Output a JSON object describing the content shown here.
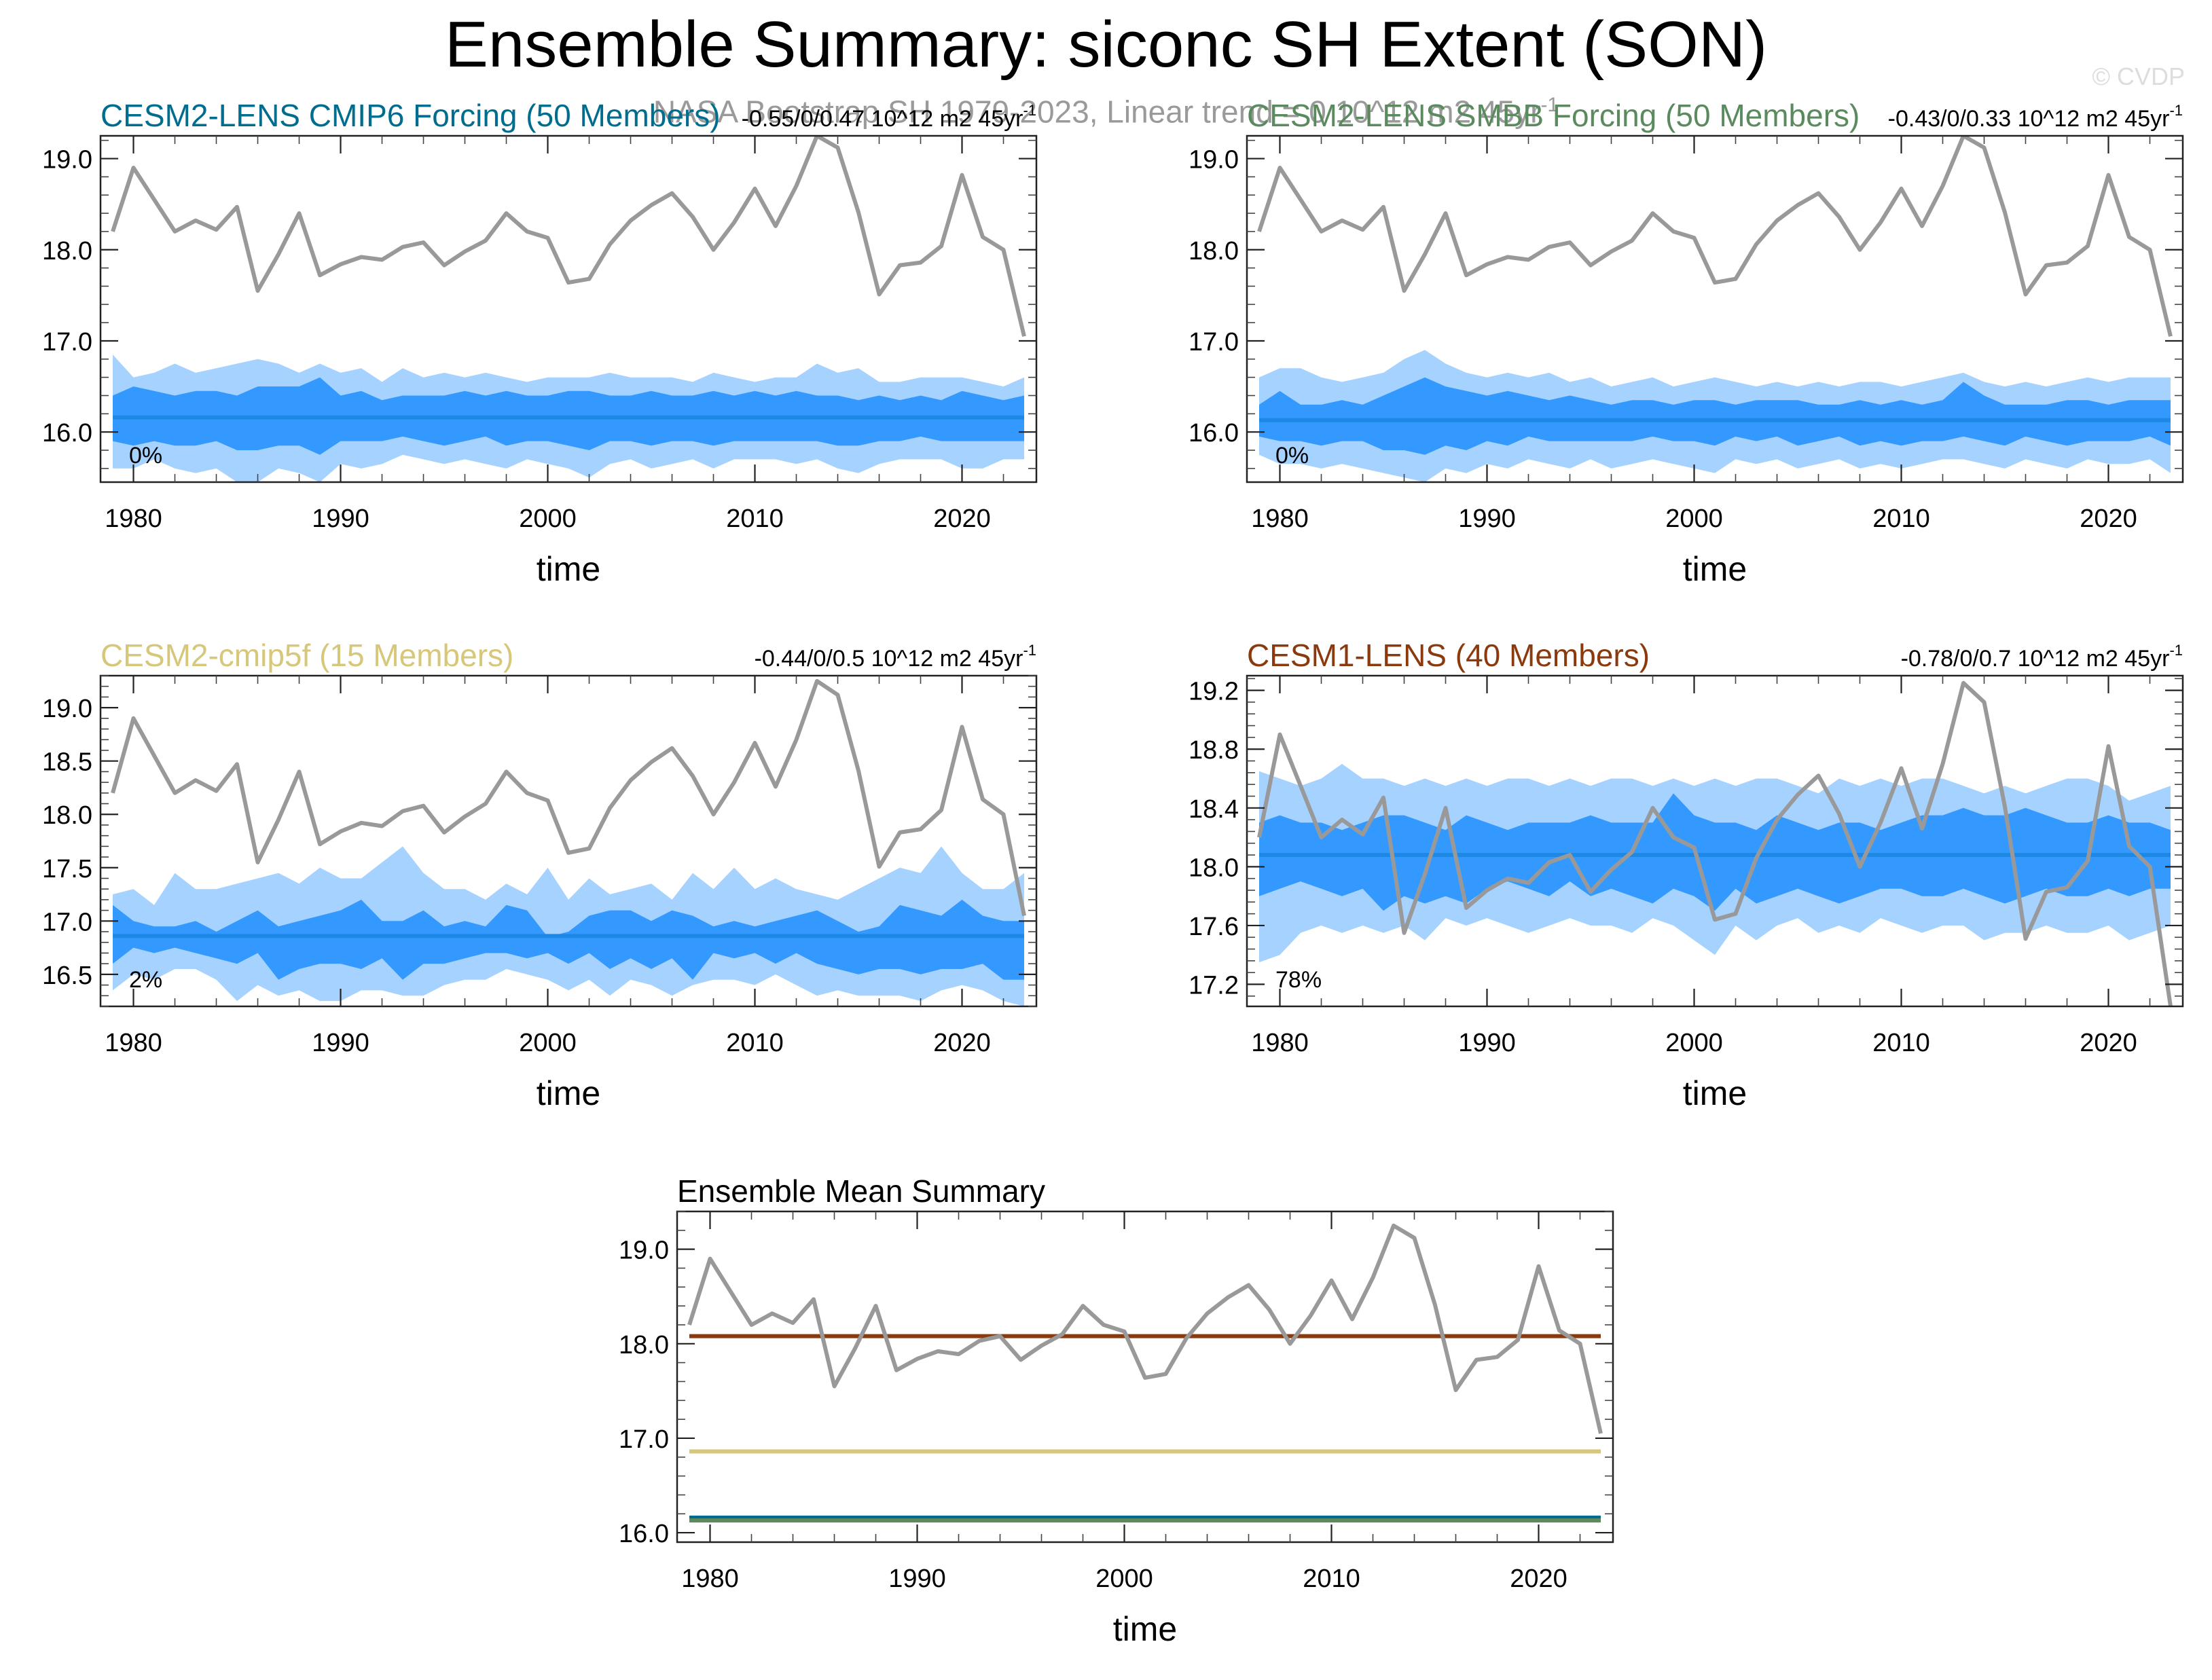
{
  "title": "Ensemble Summary: siconc SH Extent (SON)",
  "subtitle": "NASA Bootstrap SH 1979-2023, Linear trend = 0 10^12 m2 45yr",
  "subtitle_sup": "-1",
  "watermark": "© CVDP",
  "colors": {
    "obs": "#999999",
    "mean_line": "#1e88e5",
    "band_inner": "#3399ff",
    "band_outer": "#a6d2ff",
    "cmip6": "#006d8f",
    "smbb": "#5a8a5e",
    "cmip5f": "#d6c77a",
    "lens1": "#8b3a0e"
  },
  "chart_data": [
    {
      "type": "area",
      "id": "cmip6",
      "title": "CESM2-LENS CMIP6 Forcing (50 Members)",
      "title_color": "#006d8f",
      "trend_label": "-0.55/0/0.47 10^12 m2 45yr",
      "trend_sup": "-1",
      "percent_label": "0%",
      "xlabel": "time",
      "xlim": [
        1979,
        2023
      ],
      "ylim": [
        15.45,
        19.25
      ],
      "yticks": [
        16.0,
        17.0,
        18.0,
        19.0
      ],
      "ytick_labels": [
        "16.0",
        "17.0",
        "18.0",
        "19.0"
      ],
      "xticks": [
        1980,
        1990,
        2000,
        2010,
        2020
      ],
      "xtick_labels": [
        "1980",
        "1990",
        "2000",
        "2010",
        "2020"
      ],
      "ensemble_mean": 16.16,
      "outer_low": [
        15.6,
        15.6,
        15.7,
        15.6,
        15.55,
        15.6,
        15.45,
        15.45,
        15.6,
        15.55,
        15.45,
        15.65,
        15.6,
        15.65,
        15.75,
        15.7,
        15.65,
        15.7,
        15.65,
        15.6,
        15.7,
        15.65,
        15.6,
        15.5,
        15.65,
        15.7,
        15.6,
        15.65,
        15.7,
        15.6,
        15.7,
        15.7,
        15.7,
        15.65,
        15.7,
        15.6,
        15.55,
        15.65,
        15.7,
        15.7,
        15.7,
        15.6,
        15.6,
        15.7,
        15.7
      ],
      "inner_low": [
        15.9,
        15.85,
        15.9,
        15.85,
        15.85,
        15.9,
        15.8,
        15.8,
        15.85,
        15.85,
        15.75,
        15.9,
        15.9,
        15.9,
        15.95,
        15.9,
        15.85,
        15.9,
        15.95,
        15.85,
        15.9,
        15.9,
        15.85,
        15.8,
        15.9,
        15.9,
        15.85,
        15.9,
        15.9,
        15.85,
        15.9,
        15.9,
        15.9,
        15.9,
        15.9,
        15.85,
        15.85,
        15.9,
        15.9,
        15.95,
        15.9,
        15.9,
        15.9,
        15.9,
        15.9
      ],
      "inner_high": [
        16.4,
        16.5,
        16.45,
        16.4,
        16.45,
        16.45,
        16.4,
        16.5,
        16.5,
        16.5,
        16.6,
        16.4,
        16.45,
        16.35,
        16.4,
        16.4,
        16.4,
        16.45,
        16.4,
        16.45,
        16.4,
        16.4,
        16.45,
        16.45,
        16.4,
        16.4,
        16.45,
        16.4,
        16.4,
        16.45,
        16.4,
        16.45,
        16.4,
        16.45,
        16.4,
        16.4,
        16.35,
        16.4,
        16.35,
        16.4,
        16.35,
        16.45,
        16.4,
        16.35,
        16.4
      ],
      "outer_high": [
        16.85,
        16.6,
        16.65,
        16.75,
        16.65,
        16.7,
        16.75,
        16.8,
        16.75,
        16.65,
        16.75,
        16.65,
        16.7,
        16.55,
        16.7,
        16.6,
        16.65,
        16.6,
        16.65,
        16.6,
        16.55,
        16.6,
        16.6,
        16.6,
        16.65,
        16.6,
        16.6,
        16.6,
        16.55,
        16.65,
        16.6,
        16.55,
        16.6,
        16.6,
        16.75,
        16.65,
        16.7,
        16.55,
        16.55,
        16.6,
        16.6,
        16.6,
        16.55,
        16.5,
        16.6
      ]
    },
    {
      "type": "area",
      "id": "smbb",
      "title": "CESM2-LENS SMBB Forcing (50 Members)",
      "title_color": "#5a8a5e",
      "trend_label": "-0.43/0/0.33 10^12 m2 45yr",
      "trend_sup": "-1",
      "percent_label": "0%",
      "xlabel": "time",
      "xlim": [
        1979,
        2023
      ],
      "ylim": [
        15.45,
        19.25
      ],
      "yticks": [
        16.0,
        17.0,
        18.0,
        19.0
      ],
      "ytick_labels": [
        "16.0",
        "17.0",
        "18.0",
        "19.0"
      ],
      "xticks": [
        1980,
        1990,
        2000,
        2010,
        2020
      ],
      "xtick_labels": [
        "1980",
        "1990",
        "2000",
        "2010",
        "2020"
      ],
      "ensemble_mean": 16.13,
      "outer_low": [
        15.75,
        15.65,
        15.65,
        15.6,
        15.65,
        15.6,
        15.55,
        15.5,
        15.45,
        15.6,
        15.55,
        15.65,
        15.6,
        15.7,
        15.65,
        15.6,
        15.7,
        15.6,
        15.65,
        15.7,
        15.65,
        15.6,
        15.55,
        15.7,
        15.65,
        15.7,
        15.6,
        15.65,
        15.7,
        15.6,
        15.65,
        15.6,
        15.65,
        15.7,
        15.7,
        15.65,
        15.6,
        15.7,
        15.65,
        15.6,
        15.7,
        15.65,
        15.65,
        15.7,
        15.55
      ],
      "inner_low": [
        15.95,
        15.9,
        15.9,
        15.85,
        15.9,
        15.9,
        15.8,
        15.8,
        15.75,
        15.85,
        15.8,
        15.9,
        15.85,
        15.95,
        15.9,
        15.9,
        15.9,
        15.9,
        15.9,
        15.95,
        15.9,
        15.9,
        15.85,
        15.95,
        15.9,
        15.95,
        15.85,
        15.9,
        15.95,
        15.85,
        15.9,
        15.85,
        15.9,
        15.9,
        15.95,
        15.9,
        15.85,
        15.95,
        15.9,
        15.85,
        15.9,
        15.9,
        15.9,
        15.95,
        15.85
      ],
      "inner_high": [
        16.3,
        16.45,
        16.3,
        16.3,
        16.35,
        16.3,
        16.4,
        16.5,
        16.6,
        16.5,
        16.45,
        16.4,
        16.45,
        16.4,
        16.35,
        16.4,
        16.35,
        16.3,
        16.35,
        16.35,
        16.3,
        16.35,
        16.35,
        16.3,
        16.35,
        16.35,
        16.35,
        16.3,
        16.3,
        16.35,
        16.3,
        16.35,
        16.3,
        16.35,
        16.55,
        16.4,
        16.3,
        16.3,
        16.3,
        16.35,
        16.35,
        16.3,
        16.35,
        16.35,
        16.35
      ],
      "outer_high": [
        16.6,
        16.7,
        16.7,
        16.6,
        16.55,
        16.6,
        16.65,
        16.8,
        16.9,
        16.75,
        16.65,
        16.6,
        16.65,
        16.6,
        16.65,
        16.55,
        16.6,
        16.5,
        16.55,
        16.6,
        16.5,
        16.55,
        16.6,
        16.55,
        16.5,
        16.55,
        16.5,
        16.55,
        16.5,
        16.55,
        16.55,
        16.5,
        16.55,
        16.6,
        16.65,
        16.55,
        16.5,
        16.55,
        16.5,
        16.55,
        16.6,
        16.55,
        16.6,
        16.6,
        16.6
      ]
    },
    {
      "type": "area",
      "id": "cmip5f",
      "title": "CESM2-cmip5f (15 Members)",
      "title_color": "#d6c77a",
      "trend_label": "-0.44/0/0.5 10^12 m2 45yr",
      "trend_sup": "-1",
      "percent_label": "2%",
      "xlabel": "time",
      "xlim": [
        1979,
        2023
      ],
      "ylim": [
        16.2,
        19.3
      ],
      "yticks": [
        16.5,
        17.0,
        17.5,
        18.0,
        18.5,
        19.0
      ],
      "ytick_labels": [
        "16.5",
        "17.0",
        "17.5",
        "18.0",
        "18.5",
        "19.0"
      ],
      "xticks": [
        1980,
        1990,
        2000,
        2010,
        2020
      ],
      "xtick_labels": [
        "1980",
        "1990",
        "2000",
        "2010",
        "2020"
      ],
      "ensemble_mean": 16.86,
      "outer_low": [
        16.35,
        16.5,
        16.45,
        16.55,
        16.55,
        16.45,
        16.25,
        16.4,
        16.3,
        16.35,
        16.25,
        16.25,
        16.35,
        16.35,
        16.3,
        16.3,
        16.4,
        16.45,
        16.45,
        16.55,
        16.5,
        16.45,
        16.35,
        16.45,
        16.3,
        16.45,
        16.4,
        16.3,
        16.4,
        16.45,
        16.45,
        16.4,
        16.5,
        16.4,
        16.3,
        16.35,
        16.3,
        16.3,
        16.3,
        16.25,
        16.35,
        16.4,
        16.35,
        16.25,
        16.2
      ],
      "inner_low": [
        16.6,
        16.75,
        16.7,
        16.75,
        16.7,
        16.65,
        16.6,
        16.7,
        16.45,
        16.55,
        16.6,
        16.6,
        16.55,
        16.65,
        16.45,
        16.6,
        16.6,
        16.65,
        16.7,
        16.7,
        16.65,
        16.7,
        16.6,
        16.7,
        16.55,
        16.65,
        16.55,
        16.65,
        16.45,
        16.7,
        16.65,
        16.7,
        16.6,
        16.7,
        16.6,
        16.55,
        16.5,
        16.55,
        16.55,
        16.5,
        16.55,
        16.55,
        16.6,
        16.45,
        16.45
      ],
      "inner_high": [
        17.15,
        17.0,
        16.95,
        16.95,
        17.0,
        16.9,
        17.0,
        17.1,
        16.95,
        17.0,
        17.05,
        17.1,
        17.2,
        17.0,
        17.0,
        17.1,
        16.95,
        17.0,
        16.95,
        17.15,
        17.1,
        16.85,
        16.9,
        17.05,
        17.1,
        17.1,
        17.0,
        17.1,
        17.05,
        16.95,
        17.0,
        16.95,
        17.0,
        17.05,
        17.1,
        17.0,
        16.9,
        16.95,
        17.15,
        17.1,
        17.05,
        17.2,
        17.05,
        17.0,
        17.0
      ],
      "outer_high": [
        17.25,
        17.3,
        17.15,
        17.45,
        17.3,
        17.3,
        17.35,
        17.4,
        17.45,
        17.35,
        17.5,
        17.4,
        17.4,
        17.55,
        17.7,
        17.45,
        17.3,
        17.3,
        17.2,
        17.35,
        17.25,
        17.5,
        17.2,
        17.4,
        17.25,
        17.3,
        17.35,
        17.2,
        17.45,
        17.3,
        17.5,
        17.3,
        17.4,
        17.3,
        17.25,
        17.2,
        17.3,
        17.4,
        17.5,
        17.45,
        17.7,
        17.45,
        17.3,
        17.3,
        17.45
      ]
    },
    {
      "type": "area",
      "id": "lens1",
      "title": "CESM1-LENS (40 Members)",
      "title_color": "#8b3a0e",
      "trend_label": "-0.78/0/0.7 10^12 m2 45yr",
      "trend_sup": "-1",
      "percent_label": "78%",
      "xlabel": "time",
      "xlim": [
        1979,
        2023
      ],
      "ylim": [
        17.05,
        19.3
      ],
      "yticks": [
        17.2,
        17.6,
        18.0,
        18.4,
        18.8,
        19.2
      ],
      "ytick_labels": [
        "17.2",
        "17.6",
        "18.0",
        "18.4",
        "18.8",
        "19.2"
      ],
      "xticks": [
        1980,
        1990,
        2000,
        2010,
        2020
      ],
      "xtick_labels": [
        "1980",
        "1990",
        "2000",
        "2010",
        "2020"
      ],
      "ensemble_mean": 18.08,
      "outer_low": [
        17.35,
        17.4,
        17.55,
        17.6,
        17.55,
        17.6,
        17.55,
        17.6,
        17.5,
        17.65,
        17.6,
        17.65,
        17.6,
        17.55,
        17.6,
        17.65,
        17.6,
        17.6,
        17.55,
        17.65,
        17.6,
        17.5,
        17.4,
        17.6,
        17.5,
        17.6,
        17.65,
        17.55,
        17.6,
        17.55,
        17.65,
        17.6,
        17.55,
        17.6,
        17.6,
        17.5,
        17.55,
        17.55,
        17.6,
        17.55,
        17.55,
        17.6,
        17.5,
        17.55,
        17.6
      ],
      "inner_low": [
        17.8,
        17.85,
        17.9,
        17.85,
        17.8,
        17.85,
        17.7,
        17.8,
        17.75,
        17.8,
        17.75,
        17.85,
        17.9,
        17.85,
        17.8,
        17.9,
        17.8,
        17.85,
        17.8,
        17.75,
        17.85,
        17.8,
        17.7,
        17.85,
        17.75,
        17.8,
        17.85,
        17.8,
        17.75,
        17.8,
        17.85,
        17.85,
        17.8,
        17.8,
        17.85,
        17.8,
        17.75,
        17.8,
        17.85,
        17.8,
        17.8,
        17.85,
        17.8,
        17.85,
        17.85
      ],
      "inner_high": [
        18.3,
        18.35,
        18.3,
        18.3,
        18.25,
        18.3,
        18.35,
        18.35,
        18.3,
        18.25,
        18.35,
        18.3,
        18.25,
        18.3,
        18.3,
        18.3,
        18.35,
        18.3,
        18.3,
        18.3,
        18.5,
        18.35,
        18.3,
        18.3,
        18.25,
        18.35,
        18.3,
        18.25,
        18.3,
        18.3,
        18.25,
        18.3,
        18.35,
        18.35,
        18.4,
        18.35,
        18.35,
        18.4,
        18.35,
        18.3,
        18.3,
        18.35,
        18.3,
        18.3,
        18.25
      ],
      "outer_high": [
        18.65,
        18.6,
        18.55,
        18.6,
        18.7,
        18.6,
        18.6,
        18.55,
        18.6,
        18.55,
        18.6,
        18.55,
        18.6,
        18.6,
        18.55,
        18.6,
        18.55,
        18.6,
        18.6,
        18.55,
        18.6,
        18.55,
        18.6,
        18.55,
        18.6,
        18.6,
        18.55,
        18.5,
        18.6,
        18.55,
        18.6,
        18.55,
        18.6,
        18.6,
        18.55,
        18.5,
        18.55,
        18.5,
        18.55,
        18.6,
        18.6,
        18.55,
        18.45,
        18.5,
        18.55
      ]
    },
    {
      "type": "line",
      "id": "mean-summary",
      "title": "Ensemble Mean Summary",
      "title_color": "#000000",
      "xlabel": "time",
      "xlim": [
        1979,
        2023
      ],
      "ylim": [
        15.9,
        19.4
      ],
      "yticks": [
        16.0,
        17.0,
        18.0,
        19.0
      ],
      "ytick_labels": [
        "16.0",
        "17.0",
        "18.0",
        "19.0"
      ],
      "xticks": [
        1980,
        1990,
        2000,
        2010,
        2020
      ],
      "xtick_labels": [
        "1980",
        "1990",
        "2000",
        "2010",
        "2020"
      ],
      "series": [
        {
          "id": "lens1",
          "value": 18.08,
          "color": "#8b3a0e"
        },
        {
          "id": "cmip5f",
          "value": 16.86,
          "color": "#d6c77a"
        },
        {
          "id": "cmip6",
          "value": 16.16,
          "color": "#006d8f"
        },
        {
          "id": "smbb",
          "value": 16.13,
          "color": "#5a8a5e"
        }
      ]
    }
  ],
  "observations": {
    "x_start": 1979,
    "x_end": 2023,
    "values": [
      18.2,
      18.9,
      18.55,
      18.2,
      18.32,
      18.22,
      18.47,
      17.55,
      17.95,
      18.4,
      17.72,
      17.84,
      17.92,
      17.89,
      18.03,
      18.08,
      17.83,
      17.98,
      18.1,
      18.4,
      18.2,
      18.13,
      17.64,
      17.68,
      18.06,
      18.32,
      18.49,
      18.62,
      18.36,
      18.0,
      18.3,
      18.67,
      18.26,
      18.7,
      19.25,
      19.12,
      18.41,
      17.51,
      17.83,
      17.86,
      18.04,
      18.82,
      18.14,
      18.0,
      17.05
    ]
  }
}
